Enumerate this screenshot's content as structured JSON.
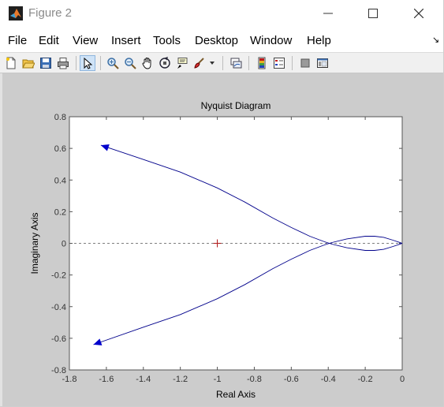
{
  "window": {
    "title": "Figure 2",
    "colors": {
      "titlebar": "#ffffff",
      "figure_bg": "#cccccc",
      "axes_bg": "#ffffff",
      "curve": "#00008b",
      "marker": "#b22222"
    }
  },
  "menu": {
    "items": [
      "File",
      "Edit",
      "View",
      "Insert",
      "Tools",
      "Desktop",
      "Window",
      "Help"
    ]
  },
  "toolbar": {
    "buttons": [
      "new-figure-icon",
      "open-file-icon",
      "save-icon",
      "print-icon",
      "edit-plot-arrow-icon",
      "zoom-in-icon",
      "zoom-out-icon",
      "pan-hand-icon",
      "rotate-3d-icon",
      "data-cursor-icon",
      "brush-icon",
      "link-plot-icon",
      "colorbar-icon",
      "legend-icon",
      "hide-plot-tools-icon",
      "show-plot-tools-icon"
    ]
  },
  "chart_data": {
    "type": "line",
    "title": "Nyquist Diagram",
    "xlabel": "Real Axis",
    "ylabel": "Imaginary Axis",
    "xlim": [
      -1.8,
      0
    ],
    "ylim": [
      -0.8,
      0.8
    ],
    "xticks": [
      "-1.8",
      "-1.6",
      "-1.4",
      "-1.2",
      "-1",
      "-0.8",
      "-0.6",
      "-0.4",
      "-0.2",
      "0"
    ],
    "yticks": [
      "-0.8",
      "-0.6",
      "-0.4",
      "-0.2",
      "0",
      "0.2",
      "0.4",
      "0.6",
      "0.8"
    ],
    "grid": false,
    "series": [
      {
        "x": [
          -1.63,
          -1.4,
          -1.2,
          -1.0,
          -0.85,
          -0.7,
          -0.6,
          -0.5,
          -0.42,
          -0.38,
          -0.3,
          -0.2,
          -0.15,
          -0.1,
          -0.05,
          0
        ],
        "y": [
          0.62,
          0.53,
          0.45,
          0.35,
          0.26,
          0.16,
          0.1,
          0.045,
          0.01,
          -0.005,
          -0.028,
          -0.045,
          -0.045,
          -0.038,
          -0.02,
          0
        ]
      },
      {
        "x": [
          -1.67,
          -1.4,
          -1.2,
          -1.0,
          -0.85,
          -0.7,
          -0.6,
          -0.5,
          -0.42,
          -0.38,
          -0.3,
          -0.2,
          -0.15,
          -0.1,
          -0.05,
          0
        ],
        "y": [
          -0.64,
          -0.53,
          -0.45,
          -0.35,
          -0.26,
          -0.16,
          -0.1,
          -0.045,
          -0.01,
          0.005,
          0.028,
          0.045,
          0.045,
          0.038,
          0.02,
          0
        ]
      }
    ],
    "critical_point": [
      -1,
      0
    ],
    "zero_line": "dashed"
  }
}
